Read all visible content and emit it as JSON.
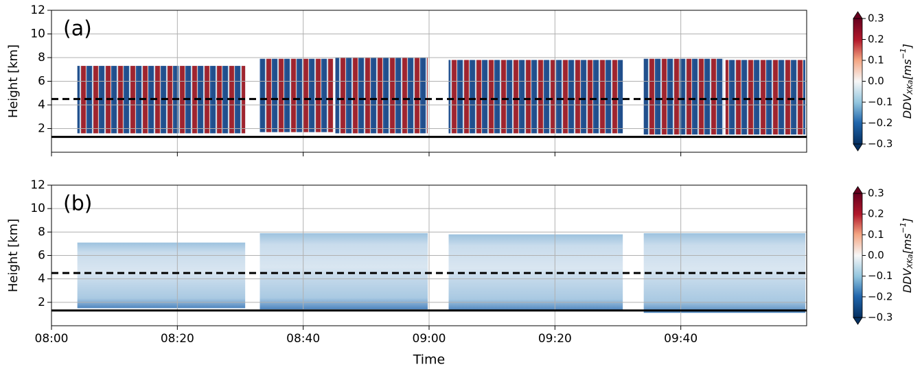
{
  "chart_data": [
    {
      "type": "heatmap",
      "panel_label": "(a)",
      "ylabel": "Height [km]",
      "xlim": [
        "08:00",
        "10:00"
      ],
      "xticks": [
        "08:00",
        "08:20",
        "08:40",
        "09:00",
        "09:20",
        "09:40"
      ],
      "xticklabels": false,
      "ylim": [
        0,
        12
      ],
      "yticks": [
        2,
        4,
        6,
        8,
        10,
        12
      ],
      "grid": true,
      "segments": [
        {
          "start": "08:04",
          "end": "08:31",
          "top": 7.3,
          "bottom": 1.6
        },
        {
          "start": "08:33",
          "end": "08:45",
          "top": 7.9,
          "bottom": 1.7
        },
        {
          "start": "08:45",
          "end": "09:00",
          "top": 8.0,
          "bottom": 1.6
        },
        {
          "start": "09:03",
          "end": "09:31",
          "top": 7.8,
          "bottom": 1.6
        },
        {
          "start": "09:34",
          "end": "09:47",
          "top": 7.9,
          "bottom": 1.5
        },
        {
          "start": "09:47",
          "end": "10:00",
          "top": 7.8,
          "bottom": 1.5
        }
      ],
      "hlines": [
        {
          "value": 4.5,
          "style": "dashed"
        },
        {
          "value": 1.3,
          "style": "solid"
        }
      ],
      "colorbar": {
        "clim": [
          -0.3,
          0.3
        ],
        "extend": "both",
        "ticks": [
          0.3,
          0.2,
          0.1,
          {
            "value": 0,
            "label": "0.0"
          },
          {
            "value": -0.1,
            "label": "−0.1"
          },
          {
            "value": -0.2,
            "label": "−0.2"
          },
          {
            "value": -0.3,
            "label": "−0.3"
          }
        ],
        "label": {
          "name": "DDV",
          "sub": "XKa",
          "unit": "[ms",
          "sup": "−1",
          "close": "]"
        }
      }
    },
    {
      "type": "heatmap",
      "panel_label": "(b)",
      "ylabel": "Height [km]",
      "xlabel": "Time",
      "xlim": [
        "08:00",
        "10:00"
      ],
      "xticks": [
        "08:00",
        "08:20",
        "08:40",
        "09:00",
        "09:20",
        "09:40"
      ],
      "xticklabels": true,
      "ylim": [
        0,
        12
      ],
      "yticks": [
        2,
        4,
        6,
        8,
        10,
        12
      ],
      "grid": true,
      "segments": [
        {
          "start": "08:04",
          "end": "08:31",
          "top": 7.1,
          "bottom": 1.5
        },
        {
          "start": "08:33",
          "end": "09:00",
          "top": 7.9,
          "bottom": 1.4
        },
        {
          "start": "09:03",
          "end": "09:31",
          "top": 7.8,
          "bottom": 1.3
        },
        {
          "start": "09:34",
          "end": "10:00",
          "top": 7.9,
          "bottom": 1.1
        }
      ],
      "hlines": [
        {
          "value": 4.5,
          "style": "dashed"
        },
        {
          "value": 1.3,
          "style": "solid"
        }
      ],
      "colorbar": {
        "clim": [
          -0.3,
          0.3
        ],
        "extend": "both",
        "ticks": [
          0.3,
          0.2,
          0.1,
          {
            "value": 0,
            "label": "0.0"
          },
          {
            "value": -0.1,
            "label": "−0.1"
          },
          {
            "value": -0.2,
            "label": "−0.2"
          },
          {
            "value": -0.3,
            "label": "−0.3"
          }
        ],
        "label": {
          "name": "DDV",
          "sub": "XKa",
          "unit": "[ms",
          "sup": "−1",
          "close": "]"
        }
      }
    }
  ]
}
